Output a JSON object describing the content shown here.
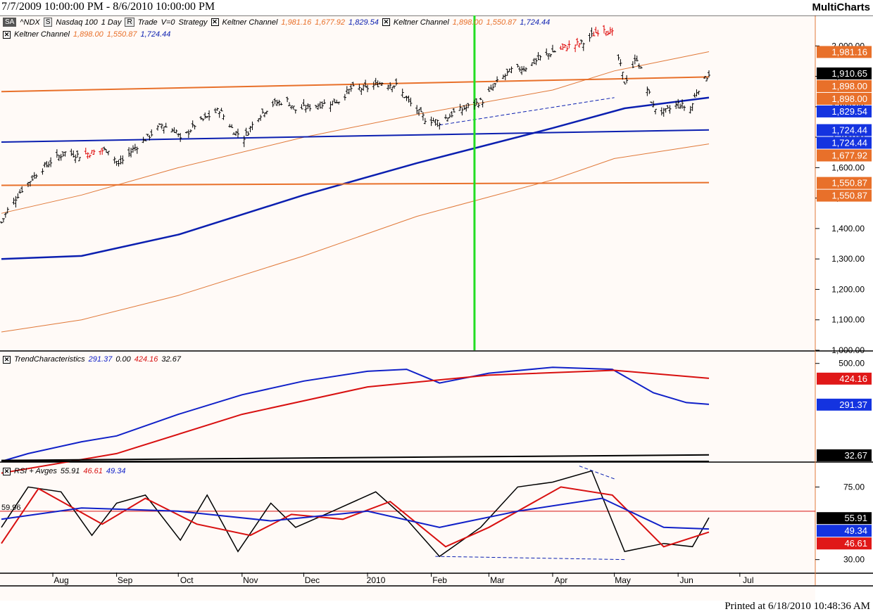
{
  "header": {
    "date_range": "7/7/2009 10:00:00 PM - 8/6/2010 10:00:00 PM",
    "brand": "MultiCharts"
  },
  "footer": {
    "printed": "Printed at 6/18/2010 10:48:36 AM"
  },
  "legends": {
    "price": {
      "symbol_box": "SA",
      "symbol": "^NDX",
      "s_box": "S",
      "instrument": "Nasdaq 100",
      "interval": "1 Day",
      "r_box": "R",
      "trade": "Trade",
      "v": "V=0",
      "strategy": "Strategy",
      "kc1_name": "Keltner Channel",
      "kc1_upper": "1,981.16",
      "kc1_lower": "1,677.92",
      "kc1_mid": "1,829.54",
      "kc2_name": "Keltner Channel",
      "kc2_upper": "1,898.00",
      "kc2_lower": "1,550.87",
      "kc2_mid": "1,724.44",
      "kc3_name": "Keltner Channel",
      "kc3_upper": "1,898.00",
      "kc3_lower": "1,550.87",
      "kc3_mid": "1,724.44"
    },
    "trend": {
      "name": "TrendCharacteristics",
      "v1": "291.37",
      "v2": "0.00",
      "v3": "424.16",
      "v4": "32.67"
    },
    "rsi": {
      "name": "RSI + Avges",
      "v1": "55.91",
      "v2": "46.61",
      "v3": "49.34"
    }
  },
  "colors": {
    "price_bars": "#000000",
    "highlight_bars": "#dd0000",
    "kc_orange": "#e8702a",
    "kc_orange_thin": "#e07838",
    "kc_blue": "#0b1fb0",
    "marker_green": "#22dd22",
    "trend_blue": "#1020c8",
    "trend_red": "#d81010",
    "rsi_black": "#000000",
    "rsi_red": "#d81010",
    "rsi_blue": "#1020c8",
    "axis_line": "#e07838"
  },
  "chart_data": [
    {
      "type": "candlestick",
      "name": "price",
      "ylim": [
        1000,
        2100
      ],
      "y_ticks": [
        "1,000.00",
        "1,100.00",
        "1,200.00",
        "1,300.00",
        "1,400.00",
        "1,500.00",
        "1,600.00",
        "1,700.00",
        "1,800.00",
        "1,900.00",
        "2,000.00"
      ],
      "grid": false,
      "x_labels": [
        "Aug",
        "Sep",
        "Oct",
        "Nov",
        "Dec",
        "2010",
        "Feb",
        "Mar",
        "Apr",
        "May",
        "Jun",
        "Jul"
      ],
      "close_path": [
        [
          "2009-07-07",
          1420
        ],
        [
          "2009-07-10",
          1460
        ],
        [
          "2009-07-16",
          1520
        ],
        [
          "2009-07-24",
          1580
        ],
        [
          "2009-07-31",
          1620
        ],
        [
          "2009-08-07",
          1650
        ],
        [
          "2009-08-14",
          1640
        ],
        [
          "2009-08-20",
          1650
        ],
        [
          "2009-08-28",
          1660
        ],
        [
          "2009-09-02",
          1610
        ],
        [
          "2009-09-09",
          1660
        ],
        [
          "2009-09-16",
          1700
        ],
        [
          "2009-09-23",
          1740
        ],
        [
          "2009-09-30",
          1720
        ],
        [
          "2009-10-02",
          1690
        ],
        [
          "2009-10-09",
          1740
        ],
        [
          "2009-10-16",
          1770
        ],
        [
          "2009-10-21",
          1790
        ],
        [
          "2009-10-28",
          1720
        ],
        [
          "2009-11-02",
          1700
        ],
        [
          "2009-11-09",
          1770
        ],
        [
          "2009-11-16",
          1810
        ],
        [
          "2009-11-23",
          1820
        ],
        [
          "2009-11-27",
          1790
        ],
        [
          "2009-12-04",
          1800
        ],
        [
          "2009-12-11",
          1810
        ],
        [
          "2009-12-18",
          1820
        ],
        [
          "2009-12-24",
          1860
        ],
        [
          "2009-12-31",
          1860
        ],
        [
          "2010-01-08",
          1880
        ],
        [
          "2010-01-15",
          1870
        ],
        [
          "2010-01-22",
          1810
        ],
        [
          "2010-01-29",
          1760
        ],
        [
          "2010-02-05",
          1750
        ],
        [
          "2010-02-12",
          1780
        ],
        [
          "2010-02-19",
          1800
        ],
        [
          "2010-02-26",
          1820
        ],
        [
          "2010-03-05",
          1880
        ],
        [
          "2010-03-12",
          1920
        ],
        [
          "2010-03-19",
          1930
        ],
        [
          "2010-03-26",
          1960
        ],
        [
          "2010-04-01",
          1980
        ],
        [
          "2010-04-09",
          2000
        ],
        [
          "2010-04-16",
          2010
        ],
        [
          "2010-04-23",
          2050
        ],
        [
          "2010-04-26",
          2060
        ],
        [
          "2010-04-30",
          2040
        ],
        [
          "2010-05-06",
          1880
        ],
        [
          "2010-05-12",
          1960
        ],
        [
          "2010-05-20",
          1800
        ],
        [
          "2010-05-25",
          1780
        ],
        [
          "2010-06-01",
          1810
        ],
        [
          "2010-06-07",
          1790
        ],
        [
          "2010-06-10",
          1850
        ],
        [
          "2010-06-16",
          1910
        ]
      ],
      "highlight_clusters": [
        [
          "2009-08-20",
          1690
        ],
        [
          "2010-04-09",
          1990
        ],
        [
          "2010-04-26",
          2060
        ]
      ],
      "kc_upper_outer": [
        [
          "2009-07-07",
          1450
        ],
        [
          "2009-08-15",
          1510
        ],
        [
          "2009-10-01",
          1600
        ],
        [
          "2009-12-01",
          1700
        ],
        [
          "2010-01-25",
          1775
        ],
        [
          "2010-04-01",
          1855
        ],
        [
          "2010-05-01",
          1918
        ],
        [
          "2010-06-16",
          1981
        ]
      ],
      "kc_lower_outer": [
        [
          "2009-07-07",
          1060
        ],
        [
          "2009-08-15",
          1100
        ],
        [
          "2009-10-01",
          1180
        ],
        [
          "2009-12-01",
          1310
        ],
        [
          "2010-01-25",
          1440
        ],
        [
          "2010-04-01",
          1560
        ],
        [
          "2010-05-01",
          1630
        ],
        [
          "2010-06-16",
          1678
        ]
      ],
      "kc_mid_thick": [
        [
          "2009-07-07",
          1300
        ],
        [
          "2009-08-15",
          1310
        ],
        [
          "2009-10-01",
          1380
        ],
        [
          "2009-12-01",
          1510
        ],
        [
          "2010-01-25",
          1615
        ],
        [
          "2010-04-01",
          1730
        ],
        [
          "2010-05-06",
          1795
        ],
        [
          "2010-06-16",
          1830
        ]
      ],
      "kc_flat_orange_top": [
        [
          "2009-07-07",
          1850
        ],
        [
          "2010-06-16",
          1898
        ]
      ],
      "kc_flat_orange_bottom": [
        [
          "2009-07-07",
          1542
        ],
        [
          "2010-06-16",
          1551
        ]
      ],
      "kc_flat_blue": [
        [
          "2009-07-07",
          1684
        ],
        [
          "2010-06-16",
          1724
        ]
      ],
      "dashed_trend": [
        [
          "2010-02-05",
          1740
        ],
        [
          "2010-05-01",
          1830
        ]
      ],
      "vertical_marker_date": "2010-02-22",
      "value_labels": [
        {
          "text": "1,981.16",
          "value": 1981.16,
          "style": "orange"
        },
        {
          "text": "1,910.65",
          "value": 1910.65,
          "style": "black"
        },
        {
          "text": "1,898.00",
          "value": 1898.0,
          "style": "orange"
        },
        {
          "text": "1,898.00",
          "value": 1898.0,
          "style": "orange"
        },
        {
          "text": "1,829.54",
          "value": 1829.54,
          "style": "blue"
        },
        {
          "text": "1,724.44",
          "value": 1724.44,
          "style": "blue"
        },
        {
          "text": "1,724.44",
          "value": 1724.44,
          "style": "blue"
        },
        {
          "text": "1,677.92",
          "value": 1677.92,
          "style": "orange"
        },
        {
          "text": "1,550.87",
          "value": 1550.87,
          "style": "orange"
        },
        {
          "text": "1,550.87",
          "value": 1550.87,
          "style": "orange"
        }
      ]
    },
    {
      "type": "line",
      "name": "TrendCharacteristics",
      "ylim": [
        0,
        560
      ],
      "y_ticks": [
        "500.00"
      ],
      "series": [
        {
          "name": "291.37",
          "color": "blue",
          "points": [
            [
              "2009-07-07",
              0
            ],
            [
              "2009-07-20",
              40
            ],
            [
              "2009-08-15",
              100
            ],
            [
              "2009-09-01",
              130
            ],
            [
              "2009-10-01",
              240
            ],
            [
              "2009-11-01",
              340
            ],
            [
              "2009-12-01",
              410
            ],
            [
              "2010-01-01",
              460
            ],
            [
              "2010-01-20",
              470
            ],
            [
              "2010-02-05",
              400
            ],
            [
              "2010-03-01",
              450
            ],
            [
              "2010-04-01",
              480
            ],
            [
              "2010-04-30",
              470
            ],
            [
              "2010-05-20",
              350
            ],
            [
              "2010-06-05",
              300
            ],
            [
              "2010-06-16",
              291
            ]
          ]
        },
        {
          "name": "424.16",
          "color": "red",
          "points": [
            [
              "2009-07-07",
              -110
            ],
            [
              "2009-09-01",
              40
            ],
            [
              "2009-11-01",
              240
            ],
            [
              "2010-01-01",
              380
            ],
            [
              "2010-03-01",
              440
            ],
            [
              "2010-05-01",
              465
            ],
            [
              "2010-06-16",
              424
            ]
          ]
        },
        {
          "name": "32.67",
          "color": "black",
          "points": [
            [
              "2009-07-07",
              5
            ],
            [
              "2010-06-16",
              33
            ]
          ]
        },
        {
          "name": "0.00",
          "color": "black",
          "points": [
            [
              "2009-07-07",
              0
            ],
            [
              "2010-06-16",
              0
            ]
          ]
        }
      ]
    },
    {
      "type": "line",
      "name": "RSI + Avges",
      "ylim": [
        22,
        90
      ],
      "y_ticks": [
        "30.00",
        "75.00"
      ],
      "ref_line": 59.96,
      "ref_label": "59.96",
      "series": [
        {
          "name": "55.91",
          "color": "black",
          "points": [
            [
              "2009-07-07",
              50
            ],
            [
              "2009-07-20",
              75
            ],
            [
              "2009-08-05",
              72
            ],
            [
              "2009-08-20",
              45
            ],
            [
              "2009-09-01",
              65
            ],
            [
              "2009-09-15",
              70
            ],
            [
              "2009-10-02",
              42
            ],
            [
              "2009-10-15",
              70
            ],
            [
              "2009-10-30",
              35
            ],
            [
              "2009-11-15",
              65
            ],
            [
              "2009-11-27",
              50
            ],
            [
              "2009-12-15",
              60
            ],
            [
              "2010-01-05",
              72
            ],
            [
              "2010-01-20",
              55
            ],
            [
              "2010-02-05",
              32
            ],
            [
              "2010-02-25",
              50
            ],
            [
              "2010-03-15",
              75
            ],
            [
              "2010-04-01",
              78
            ],
            [
              "2010-04-20",
              85
            ],
            [
              "2010-05-06",
              35
            ],
            [
              "2010-05-25",
              40
            ],
            [
              "2010-06-08",
              38
            ],
            [
              "2010-06-16",
              56
            ]
          ]
        },
        {
          "name": "46.61",
          "color": "red",
          "points": [
            [
              "2009-07-07",
              40
            ],
            [
              "2009-07-25",
              74
            ],
            [
              "2009-08-25",
              52
            ],
            [
              "2009-09-15",
              68
            ],
            [
              "2009-10-10",
              52
            ],
            [
              "2009-11-05",
              45
            ],
            [
              "2009-11-25",
              58
            ],
            [
              "2009-12-20",
              55
            ],
            [
              "2010-01-12",
              66
            ],
            [
              "2010-02-08",
              38
            ],
            [
              "2010-03-01",
              50
            ],
            [
              "2010-04-05",
              75
            ],
            [
              "2010-04-30",
              70
            ],
            [
              "2010-05-25",
              38
            ],
            [
              "2010-06-16",
              47
            ]
          ]
        },
        {
          "name": "49.34",
          "color": "blue",
          "points": [
            [
              "2009-07-07",
              55
            ],
            [
              "2009-08-15",
              62
            ],
            [
              "2009-10-01",
              60
            ],
            [
              "2009-11-15",
              54
            ],
            [
              "2010-01-01",
              60
            ],
            [
              "2010-02-05",
              50
            ],
            [
              "2010-03-15",
              60
            ],
            [
              "2010-04-25",
              68
            ],
            [
              "2010-05-25",
              50
            ],
            [
              "2010-06-16",
              49
            ]
          ]
        }
      ],
      "dashed_top": [
        [
          "2010-04-14",
          88
        ],
        [
          "2010-05-01",
          80
        ]
      ],
      "dashed_bottom": [
        [
          "2010-02-03",
          32
        ],
        [
          "2010-05-06",
          30
        ]
      ],
      "value_labels": [
        {
          "text": "55.91",
          "value": 55.91,
          "style": "black"
        },
        {
          "text": "49.34",
          "value": 49.34,
          "style": "blue"
        },
        {
          "text": "46.61",
          "value": 46.61,
          "style": "red"
        }
      ]
    }
  ]
}
